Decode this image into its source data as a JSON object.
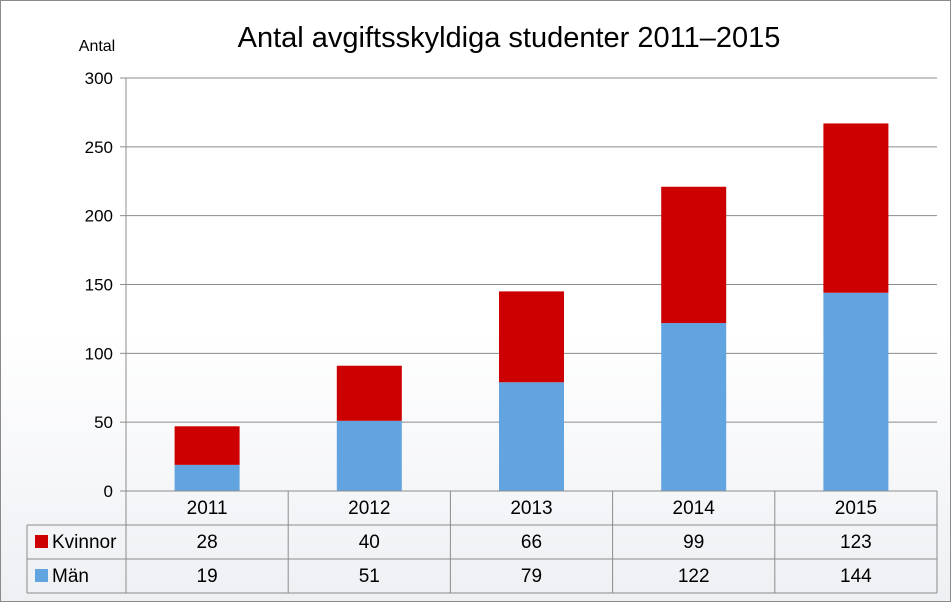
{
  "chart_data": {
    "type": "bar",
    "stacked": true,
    "title": "Antal avgiftsskyldiga studenter 2011–2015",
    "ylabel": "Antal",
    "xlabel": "",
    "ylim": [
      0,
      300
    ],
    "yticks": [
      "0",
      "50",
      "100",
      "150",
      "200",
      "250",
      "300"
    ],
    "grid": true,
    "legend": "data-table",
    "categories": [
      "2011",
      "2012",
      "2013",
      "2014",
      "2015"
    ],
    "series": [
      {
        "name": "Män",
        "color": "#62a4e0",
        "values": [
          19,
          51,
          79,
          122,
          144
        ]
      },
      {
        "name": "Kvinnor",
        "color": "#cc0000",
        "values": [
          28,
          40,
          66,
          99,
          123
        ]
      }
    ],
    "table_rows": [
      {
        "name": "Kvinnor",
        "color": "#cc0000",
        "values": [
          "28",
          "40",
          "66",
          "99",
          "123"
        ]
      },
      {
        "name": "Män",
        "color": "#62a4e0",
        "values": [
          "19",
          "51",
          "79",
          "122",
          "144"
        ]
      }
    ]
  }
}
